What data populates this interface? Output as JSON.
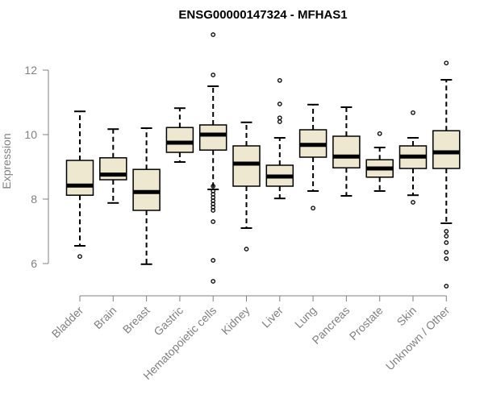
{
  "chart_data": {
    "type": "boxplot",
    "title": "ENSG00000147324 - MFHAS1",
    "ylabel": "Expression",
    "xlabel": "",
    "ylim": [
      5.1,
      13.2
    ],
    "yticks": [
      6,
      8,
      10,
      12
    ],
    "grid": false,
    "colors": {
      "box_fill": "#eee8d0",
      "stroke": "#000000",
      "axis_text": "#808080"
    },
    "categories": [
      "Bladder",
      "Brain",
      "Breast",
      "Gastric",
      "Hematopoietic cells",
      "Kidney",
      "Liver",
      "Lung",
      "Pancreas",
      "Prostate",
      "Skin",
      "Unknown / Other"
    ],
    "boxes": [
      {
        "category": "Bladder",
        "whisker_low": 6.55,
        "q1": 8.12,
        "median": 8.42,
        "q3": 9.2,
        "whisker_high": 10.72,
        "outliers": [
          6.22
        ]
      },
      {
        "category": "Brain",
        "whisker_low": 7.88,
        "q1": 8.6,
        "median": 8.76,
        "q3": 9.28,
        "whisker_high": 10.17,
        "outliers": []
      },
      {
        "category": "Breast",
        "whisker_low": 5.98,
        "q1": 7.65,
        "median": 8.22,
        "q3": 8.92,
        "whisker_high": 10.2,
        "outliers": []
      },
      {
        "category": "Gastric",
        "whisker_low": 9.15,
        "q1": 9.45,
        "median": 9.75,
        "q3": 10.22,
        "whisker_high": 10.82,
        "outliers": []
      },
      {
        "category": "Hematopoietic cells",
        "whisker_low": 8.3,
        "q1": 9.52,
        "median": 10.0,
        "q3": 10.3,
        "whisker_high": 11.5,
        "outliers": [
          13.1,
          11.85,
          8.4,
          8.25,
          8.15,
          8.05,
          7.95,
          7.85,
          7.75,
          7.65,
          7.3,
          6.1,
          5.45
        ]
      },
      {
        "category": "Kidney",
        "whisker_low": 7.1,
        "q1": 8.4,
        "median": 9.1,
        "q3": 9.65,
        "whisker_high": 10.38,
        "outliers": [
          6.45
        ]
      },
      {
        "category": "Liver",
        "whisker_low": 8.02,
        "q1": 8.4,
        "median": 8.7,
        "q3": 9.05,
        "whisker_high": 9.9,
        "outliers": [
          11.68,
          10.95,
          10.52,
          10.4
        ]
      },
      {
        "category": "Lung",
        "whisker_low": 8.25,
        "q1": 9.3,
        "median": 9.68,
        "q3": 10.15,
        "whisker_high": 10.93,
        "outliers": [
          7.72
        ]
      },
      {
        "category": "Pancreas",
        "whisker_low": 8.1,
        "q1": 8.97,
        "median": 9.32,
        "q3": 9.95,
        "whisker_high": 10.85,
        "outliers": []
      },
      {
        "category": "Prostate",
        "whisker_low": 8.25,
        "q1": 8.68,
        "median": 8.95,
        "q3": 9.22,
        "whisker_high": 9.6,
        "outliers": [
          10.03
        ]
      },
      {
        "category": "Skin",
        "whisker_low": 8.12,
        "q1": 8.95,
        "median": 9.32,
        "q3": 9.65,
        "whisker_high": 9.9,
        "outliers": [
          10.68,
          7.9
        ]
      },
      {
        "category": "Unknown / Other",
        "whisker_low": 7.25,
        "q1": 8.95,
        "median": 9.45,
        "q3": 10.12,
        "whisker_high": 11.7,
        "outliers": [
          12.22,
          7.0,
          6.85,
          6.65,
          6.35,
          6.15,
          5.3
        ]
      }
    ]
  }
}
